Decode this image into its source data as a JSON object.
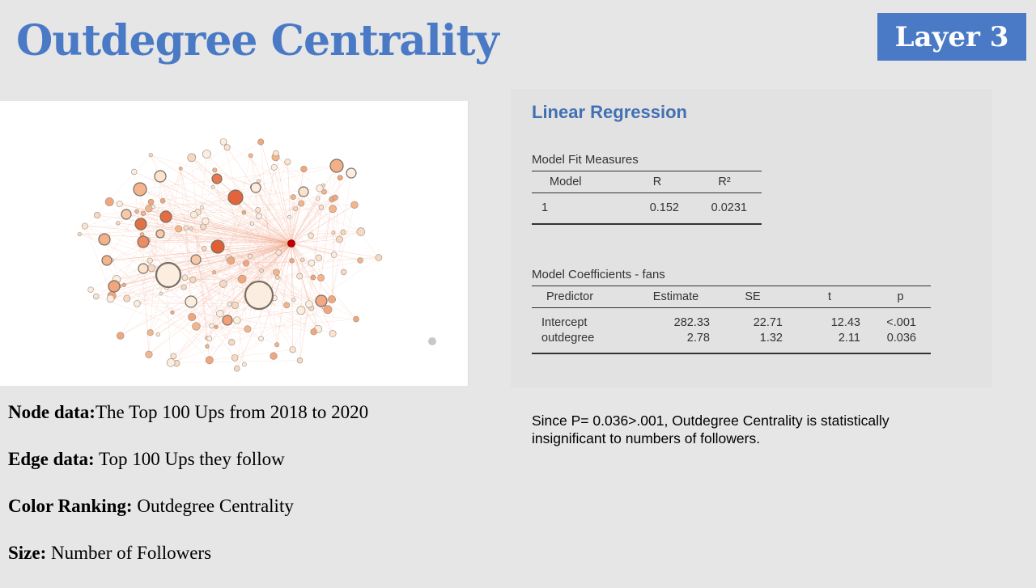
{
  "header": {
    "title": "Outdegree Centrality",
    "badge": "Layer 3"
  },
  "regression": {
    "title": "Linear Regression",
    "fit": {
      "caption": "Model Fit Measures",
      "headers": [
        "Model",
        "R",
        "R²"
      ],
      "row": [
        "1",
        "0.152",
        "0.0231"
      ]
    },
    "coef": {
      "caption": "Model Coefficients - fans",
      "headers": [
        "Predictor",
        "Estimate",
        "SE",
        "t",
        "p"
      ],
      "rows": [
        [
          "Intercept",
          "282.33",
          "22.71",
          "12.43",
          "<.001"
        ],
        [
          "outdegree",
          "2.78",
          "1.32",
          "2.11",
          "0.036"
        ]
      ]
    }
  },
  "notes": {
    "node_label": "Node data:",
    "node_value": "The Top 100 Ups from 2018 to 2020",
    "edge_label": "Edge data:",
    "edge_value": " Top 100 Ups they follow",
    "color_label": "Color Ranking:",
    "color_value": " Outdegree Centrality",
    "size_label": "Size:",
    "size_value": " Number of Followers"
  },
  "conclusion": "Since P= 0.036>.001, Outdegree Centrality is statistically insignificant to numbers of followers.",
  "colors": {
    "accent": "#4a7ac6",
    "hub": "#c00000",
    "edge": "#f2a58a"
  }
}
